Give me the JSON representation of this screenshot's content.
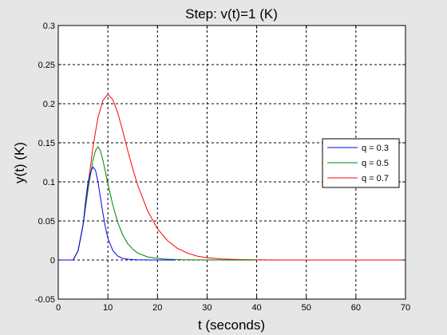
{
  "chart_data": {
    "type": "line",
    "title": "Step: v(t)=1 (K)",
    "xlabel": "t (seconds)",
    "ylabel": "y(t) (K)",
    "xlim": [
      0,
      70
    ],
    "ylim": [
      -0.05,
      0.3
    ],
    "xticks": [
      0,
      10,
      20,
      30,
      40,
      50,
      60,
      70
    ],
    "yticks": [
      -0.05,
      0,
      0.05,
      0.1,
      0.15,
      0.2,
      0.25,
      0.3
    ],
    "ytick_labels": [
      "-0.05",
      "0",
      "0.05",
      "0.1",
      "0.15",
      "0.2",
      "0.25",
      "0.3"
    ],
    "grid": true,
    "legend_position": "right",
    "series": [
      {
        "name": "q = 0.3",
        "color": "#0000ff",
        "x": [
          0,
          3,
          4,
          5,
          5.5,
          6,
          6.5,
          7,
          7.5,
          8,
          8.5,
          9,
          9.5,
          10,
          11,
          12,
          13,
          14,
          15,
          16,
          18,
          20,
          23.5
        ],
        "y": [
          0,
          0,
          0.012,
          0.045,
          0.075,
          0.1,
          0.112,
          0.119,
          0.115,
          0.1,
          0.08,
          0.06,
          0.042,
          0.028,
          0.012,
          0.005,
          0.002,
          0.001,
          0.0005,
          0.0002,
          0.0001,
          0,
          0
        ]
      },
      {
        "name": "q = 0.5",
        "color": "#008000",
        "x": [
          0,
          3,
          4,
          5,
          6,
          7,
          7.5,
          8,
          8.5,
          9,
          10,
          11,
          12,
          13,
          14,
          15,
          16,
          18,
          20,
          22,
          25,
          30,
          35,
          40
        ],
        "y": [
          0,
          0,
          0.012,
          0.045,
          0.09,
          0.128,
          0.14,
          0.145,
          0.14,
          0.128,
          0.098,
          0.07,
          0.048,
          0.032,
          0.021,
          0.014,
          0.009,
          0.004,
          0.002,
          0.001,
          0.0004,
          0.0001,
          0,
          0
        ]
      },
      {
        "name": "q = 0.7",
        "color": "#ff0000",
        "x": [
          0,
          3,
          4,
          5,
          6,
          7,
          8,
          9,
          10,
          11,
          12,
          13,
          14,
          15,
          16,
          18,
          20,
          22,
          24,
          26,
          28,
          30,
          33,
          36,
          40,
          45,
          50,
          60,
          70
        ],
        "y": [
          0,
          0,
          0.012,
          0.045,
          0.095,
          0.145,
          0.182,
          0.204,
          0.212,
          0.205,
          0.188,
          0.165,
          0.14,
          0.117,
          0.096,
          0.063,
          0.04,
          0.025,
          0.015,
          0.009,
          0.005,
          0.003,
          0.0013,
          0.0006,
          0.0002,
          0,
          0,
          0,
          0
        ]
      }
    ]
  }
}
